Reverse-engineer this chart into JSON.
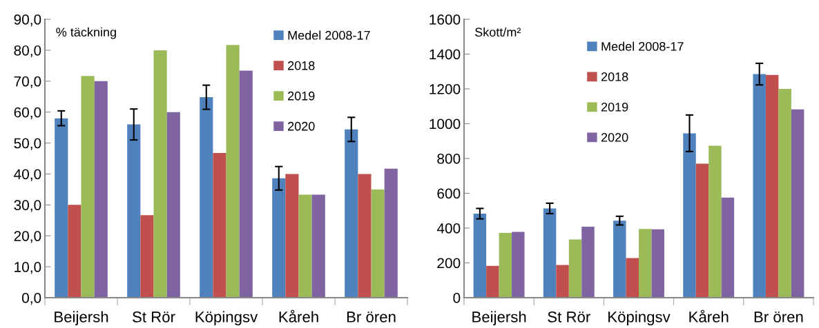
{
  "chart_data": [
    {
      "type": "bar",
      "ylabel": "% täckning",
      "categories": [
        "Beijersh",
        "St Rör",
        "Köpingsv",
        "Kåreh",
        "Br ören"
      ],
      "series": [
        {
          "name": "Medel 2008-17",
          "color": "#4f81bd",
          "values": [
            58.0,
            56.0,
            64.8,
            38.6,
            54.4
          ],
          "errors": [
            2.4,
            5.0,
            3.9,
            3.8,
            3.9
          ]
        },
        {
          "name": "2018",
          "color": "#c0504d",
          "values": [
            30.0,
            26.7,
            46.8,
            40.0,
            40.0
          ]
        },
        {
          "name": "2019",
          "color": "#9bbb59",
          "values": [
            71.7,
            80.0,
            81.7,
            33.3,
            35.0
          ]
        },
        {
          "name": "2020",
          "color": "#8064a2",
          "values": [
            70.0,
            60.0,
            73.4,
            33.3,
            41.7
          ]
        }
      ],
      "ylim": [
        0,
        90
      ],
      "yticks": [
        {
          "value": 0,
          "label": "0,0"
        },
        {
          "value": 10,
          "label": "10,0"
        },
        {
          "value": 20,
          "label": "20,0"
        },
        {
          "value": 30,
          "label": "30,0"
        },
        {
          "value": 40,
          "label": "40,0"
        },
        {
          "value": 50,
          "label": "50,0"
        },
        {
          "value": 60,
          "label": "60,0"
        },
        {
          "value": 70,
          "label": "70,0"
        },
        {
          "value": 80,
          "label": "80,0"
        },
        {
          "value": 90,
          "label": "90,0"
        }
      ],
      "grid": false,
      "legend": "top right"
    },
    {
      "type": "bar",
      "ylabel": "Skott/m²",
      "categories": [
        "Beijersh",
        "St Rör",
        "Köpingsv",
        "Kåreh",
        "Br ören"
      ],
      "series": [
        {
          "name": "Medel 2008-17",
          "color": "#4f81bd",
          "values": [
            483,
            513,
            443,
            945,
            1285
          ],
          "errors": [
            30,
            30,
            25,
            105,
            62
          ]
        },
        {
          "name": "2018",
          "color": "#c0504d",
          "values": [
            183,
            188,
            228,
            770,
            1280
          ]
        },
        {
          "name": "2019",
          "color": "#9bbb59",
          "values": [
            372,
            335,
            395,
            873,
            1200
          ]
        },
        {
          "name": "2020",
          "color": "#8064a2",
          "values": [
            378,
            408,
            393,
            575,
            1082
          ]
        }
      ],
      "ylim": [
        0,
        1600
      ],
      "yticks": [
        0,
        200,
        400,
        600,
        800,
        1000,
        1200,
        1400,
        1600
      ],
      "grid": false,
      "legend": "top"
    }
  ]
}
